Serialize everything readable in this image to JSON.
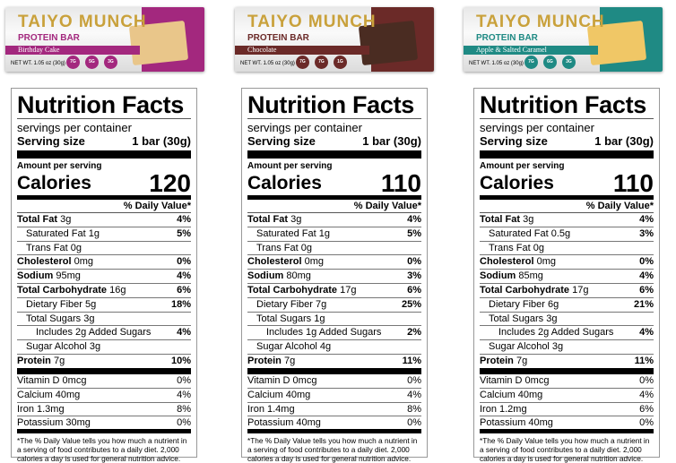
{
  "products": [
    {
      "brand": "TAIYO MUNCH",
      "type": "PROTEIN BAR",
      "flavor": "Birthday Cake",
      "net_wt": "NET WT. 1.05 oz (30g)",
      "color": "#a3287e",
      "bar_color": "#e9c68a",
      "badges": [
        "7G",
        "5G",
        "3G"
      ],
      "facts": {
        "title": "Nutrition Facts",
        "servings": "servings per container",
        "serving_label": "Serving size",
        "serving_value": "1 bar (30g)",
        "aps": "Amount per serving",
        "cal_label": "Calories",
        "calories": "120",
        "dv_header": "% Daily Value*",
        "rows": [
          [
            "Total Fat",
            "3g",
            "4%"
          ],
          [
            "Saturated Fat 1g",
            "",
            "5%"
          ],
          [
            "Trans Fat 0g",
            "",
            ""
          ],
          [
            "Cholesterol",
            "0mg",
            "0%"
          ],
          [
            "Sodium",
            "95mg",
            "4%"
          ],
          [
            "Total Carbohydrate",
            "16g",
            "6%"
          ],
          [
            "Dietary Fiber 5g",
            "",
            "18%"
          ],
          [
            "Total Sugars 3g",
            "",
            ""
          ],
          [
            "Includes 2g Added Sugars",
            "",
            "4%"
          ],
          [
            "Sugar Alcohol 3g",
            "",
            ""
          ],
          [
            "Protein",
            "7g",
            "10%"
          ]
        ],
        "vitamins": [
          [
            "Vitamin D 0mcg",
            "0%"
          ],
          [
            "Calcium 40mg",
            "4%"
          ],
          [
            "Iron 1.3mg",
            "8%"
          ],
          [
            "Potassium 30mg",
            "0%"
          ]
        ],
        "footnote": "*The % Daily Value tells you how much a nutrient in a serving of food contributes to a daily diet. 2,000 calories a day is used for general nutrition advice."
      }
    },
    {
      "brand": "TAIYO MUNCH",
      "type": "PROTEIN BAR",
      "flavor": "Chocolate",
      "net_wt": "NET WT. 1.05 oz (30g)",
      "color": "#6b2a28",
      "bar_color": "#4a2c22",
      "badges": [
        "7G",
        "7G",
        "1G"
      ],
      "facts": {
        "title": "Nutrition Facts",
        "servings": "servings per container",
        "serving_label": "Serving size",
        "serving_value": "1 bar (30g)",
        "aps": "Amount per serving",
        "cal_label": "Calories",
        "calories": "110",
        "dv_header": "% Daily Value*",
        "rows": [
          [
            "Total Fat",
            "3g",
            "4%"
          ],
          [
            "Saturated Fat 1g",
            "",
            "5%"
          ],
          [
            "Trans Fat 0g",
            "",
            ""
          ],
          [
            "Cholesterol",
            "0mg",
            "0%"
          ],
          [
            "Sodium",
            "80mg",
            "3%"
          ],
          [
            "Total Carbohydrate",
            "17g",
            "6%"
          ],
          [
            "Dietary Fiber 7g",
            "",
            "25%"
          ],
          [
            "Total Sugars 1g",
            "",
            ""
          ],
          [
            "Includes 1g Added Sugars",
            "",
            "2%"
          ],
          [
            "Sugar Alcohol 4g",
            "",
            ""
          ],
          [
            "Protein",
            "7g",
            "11%"
          ]
        ],
        "vitamins": [
          [
            "Vitamin D 0mcg",
            "0%"
          ],
          [
            "Calcium 40mg",
            "4%"
          ],
          [
            "Iron 1.4mg",
            "8%"
          ],
          [
            "Potassium 40mg",
            "0%"
          ]
        ],
        "footnote": "*The % Daily Value tells you how much a nutrient in a serving of food contributes to a daily diet. 2,000 calories a day is used for general nutrition advice."
      }
    },
    {
      "brand": "TAIYO MUNCH",
      "type": "PROTEIN BAR",
      "flavor": "Apple & Salted Caramel",
      "net_wt": "NET WT. 1.05 oz (30g)",
      "color": "#1f8a84",
      "bar_color": "#f0c766",
      "badges": [
        "7G",
        "6G",
        "3G"
      ],
      "facts": {
        "title": "Nutrition Facts",
        "servings": "servings per container",
        "serving_label": "Serving size",
        "serving_value": "1 bar (30g)",
        "aps": "Amount per serving",
        "cal_label": "Calories",
        "calories": "110",
        "dv_header": "% Daily Value*",
        "rows": [
          [
            "Total Fat",
            "3g",
            "4%"
          ],
          [
            "Saturated Fat 0.5g",
            "",
            "3%"
          ],
          [
            "Trans Fat 0g",
            "",
            ""
          ],
          [
            "Cholesterol",
            "0mg",
            "0%"
          ],
          [
            "Sodium",
            "85mg",
            "4%"
          ],
          [
            "Total Carbohydrate",
            "17g",
            "6%"
          ],
          [
            "Dietary Fiber 6g",
            "",
            "21%"
          ],
          [
            "Total Sugars 3g",
            "",
            ""
          ],
          [
            "Includes 2g Added Sugars",
            "",
            "4%"
          ],
          [
            "Sugar Alcohol 3g",
            "",
            ""
          ],
          [
            "Protein",
            "7g",
            "11%"
          ]
        ],
        "vitamins": [
          [
            "Vitamin D 0mcg",
            "0%"
          ],
          [
            "Calcium 40mg",
            "4%"
          ],
          [
            "Iron 1.2mg",
            "6%"
          ],
          [
            "Potassium 40mg",
            "0%"
          ]
        ],
        "footnote": "*The % Daily Value tells you how much a nutrient in a serving of food contributes to a daily diet. 2,000 calories a day is used for general nutrition advice."
      }
    }
  ]
}
